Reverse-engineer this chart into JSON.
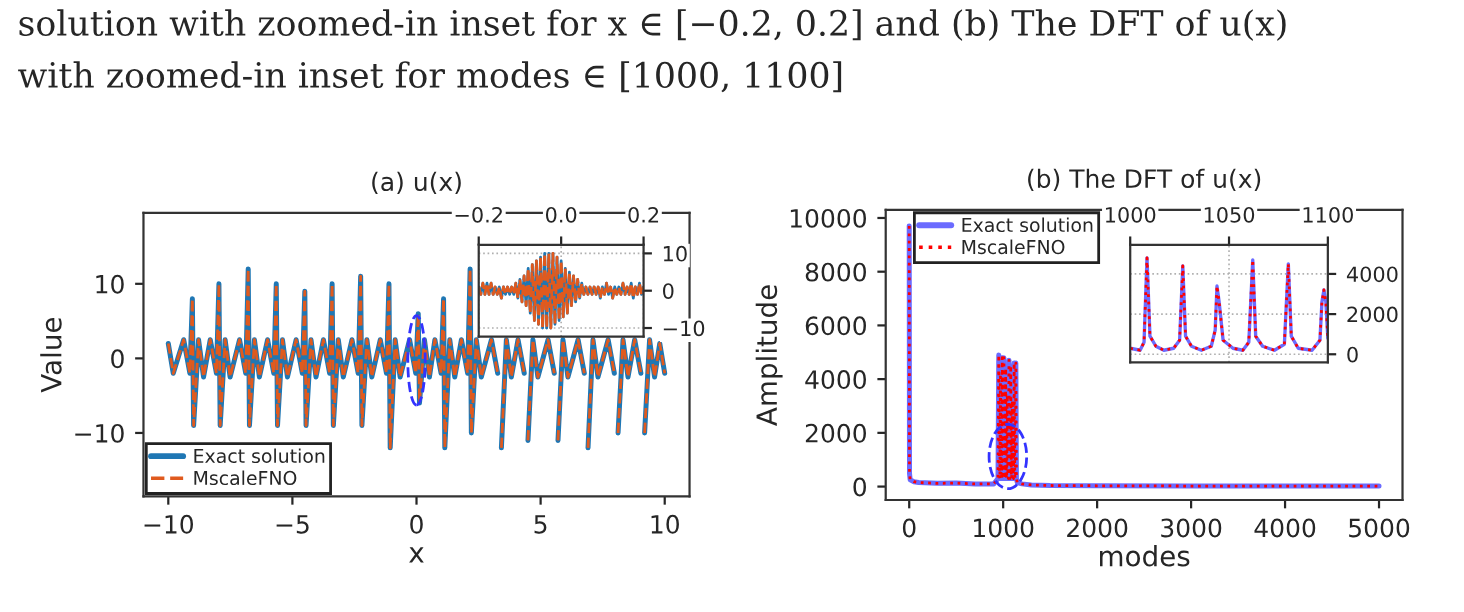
{
  "chart_data": [
    {
      "type": "line",
      "title": "(a) u(x)",
      "xlabel": "x",
      "ylabel": "Value",
      "xlim": [
        -11,
        11
      ],
      "ylim": [
        -18.5,
        19.5
      ],
      "xticks": [
        {
          "value": -10,
          "label": "−10"
        },
        {
          "value": -5,
          "label": "−5"
        },
        0,
        5,
        10
      ],
      "yticks": [
        {
          "value": -10,
          "label": "−10"
        },
        0,
        10
      ],
      "legend": "bottom left",
      "grid": false,
      "annotations": [
        "solution with zoomed-in inset for x ∈ [−0.2, 0.2] and (b) The DFT of u(x)",
        "with zoomed-in inset for modes ∈ [1000, 1100]"
      ],
      "x": [
        -10,
        -9.8,
        -9.38,
        -9.13,
        -9.03,
        -8.98,
        -8.78,
        -8.58,
        -8.31,
        -8.06,
        -7.96,
        -7.91,
        -7.71,
        -7.51,
        -7.13,
        -6.88,
        -6.78,
        -6.73,
        -6.53,
        -6.33,
        -6.0,
        -5.75,
        -5.65,
        -5.6,
        -5.4,
        -5.2,
        -4.85,
        -4.6,
        -4.5,
        -4.45,
        -4.25,
        -4.05,
        -3.75,
        -3.5,
        -3.4,
        -3.35,
        -3.15,
        -2.95,
        -2.6,
        -2.35,
        -2.25,
        -2.2,
        -2.0,
        -1.8,
        -1.46,
        -1.21,
        -1.11,
        -1.06,
        -0.86,
        -0.66,
        -0.28,
        -0.03,
        0.07,
        0.12,
        0.32,
        0.52,
        0.74,
        0.99,
        1.09,
        1.14,
        1.34,
        1.54,
        1.81,
        2.06,
        2.16,
        2.21,
        2.41,
        2.61,
        3.02,
        3.27,
        3.37,
        3.42,
        3.62,
        3.82,
        4.09,
        4.34,
        4.44,
        4.49,
        4.69,
        4.89,
        5.3,
        5.55,
        5.65,
        5.7,
        5.9,
        6.1,
        6.51,
        6.76,
        6.86,
        6.91,
        7.11,
        7.31,
        7.72,
        7.97,
        8.07,
        8.12,
        8.32,
        8.52,
        8.79,
        9.04,
        9.14,
        9.19,
        9.39,
        9.59,
        9.8,
        10
      ],
      "series": [
        {
          "name": "Exact solution",
          "color": "#1f77b4",
          "line_style": "solid",
          "values": [
            2,
            -2,
            2.5,
            -2,
            8,
            -9,
            2.5,
            -2.5,
            2.5,
            -2,
            10,
            -9,
            2.5,
            -2.5,
            2.5,
            -2,
            12,
            -9,
            2.5,
            -2.5,
            2.5,
            -2,
            10,
            -9,
            2.5,
            -2.5,
            2.5,
            -2,
            9,
            -9,
            2.5,
            -2.5,
            2.5,
            -2,
            10,
            -9,
            2.5,
            -2.5,
            2.5,
            -2,
            11,
            -9,
            2.5,
            -2.5,
            2.5,
            -2,
            10,
            -12,
            2.5,
            -2.5,
            2.5,
            -2,
            6,
            -6,
            2.5,
            -2.5,
            2.5,
            -2,
            8,
            -12,
            2.5,
            -2.5,
            2.5,
            -2,
            12,
            -10,
            2.5,
            -2.5,
            2.5,
            -2,
            null,
            -12,
            2.5,
            -2.5,
            2.5,
            -2,
            null,
            -11,
            2.5,
            -2.5,
            2.5,
            -2,
            null,
            -11,
            2.5,
            -2.5,
            2.5,
            -2,
            null,
            -12,
            2.5,
            -2.5,
            2.5,
            -2,
            null,
            -10,
            2.5,
            -2.5,
            2.5,
            -2,
            null,
            -10,
            2.5,
            -2.5,
            2,
            -2
          ]
        },
        {
          "name": "MscaleFNO",
          "color": "#e05a1e",
          "line_style": "dashed",
          "values": [
            2,
            -2,
            2.5,
            -2,
            8,
            -9,
            2.5,
            -2.5,
            2.5,
            -2,
            10,
            -9,
            2.5,
            -2.5,
            2.5,
            -2,
            12,
            -9,
            2.5,
            -2.5,
            2.5,
            -2,
            10,
            -9,
            2.5,
            -2.5,
            2.5,
            -2,
            9,
            -9,
            2.5,
            -2.5,
            2.5,
            -2,
            10,
            -9,
            2.5,
            -2.5,
            2.5,
            -2,
            11,
            -9,
            2.5,
            -2.5,
            2.5,
            -2,
            10,
            -12,
            2.5,
            -2.5,
            2.5,
            -2,
            6,
            -6,
            2.5,
            -2.5,
            2.5,
            -2,
            8,
            -12,
            2.5,
            -2.5,
            2.5,
            -2,
            12,
            -10,
            2.5,
            -2.5,
            2.5,
            -2,
            null,
            -12,
            2.5,
            -2.5,
            2.5,
            -2,
            null,
            -11,
            2.5,
            -2.5,
            2.5,
            -2,
            null,
            -11,
            2.5,
            -2.5,
            2.5,
            -2,
            null,
            -12,
            2.5,
            -2.5,
            2.5,
            -2,
            null,
            -10,
            2.5,
            -2.5,
            2.5,
            -2,
            null,
            -10,
            2.5,
            -2.5,
            2,
            -2
          ]
        }
      ]
    },
    {
      "type": "line",
      "xlim": [
        -0.2,
        0.2
      ],
      "ylim": [
        -12.3,
        12.3
      ],
      "xticks": [
        {
          "value": -0.2,
          "label": "−0.2"
        },
        {
          "value": 0,
          "label": "0.0"
        },
        {
          "value": 0.2,
          "label": "0.2"
        }
      ],
      "yticks": [
        {
          "value": -10,
          "label": "−10"
        },
        0,
        10
      ],
      "grid": true,
      "legend": false,
      "x": [
        -0.2,
        -0.195,
        -0.19,
        -0.185,
        -0.18,
        -0.175,
        -0.17,
        -0.165,
        -0.16,
        -0.155,
        -0.15,
        -0.145,
        -0.14,
        -0.135,
        -0.13,
        -0.125,
        -0.12,
        -0.115,
        -0.11,
        -0.105,
        -0.1,
        -0.095,
        -0.09,
        -0.085,
        -0.08,
        -0.075,
        -0.07,
        -0.065,
        -0.06,
        -0.055,
        -0.05,
        -0.045,
        -0.04,
        -0.035,
        -0.03,
        -0.025,
        -0.02,
        -0.015,
        -0.01,
        -0.005,
        0,
        0.005,
        0.01,
        0.015,
        0.02,
        0.025,
        0.03,
        0.035,
        0.04,
        0.045,
        0.05,
        0.055,
        0.06,
        0.065,
        0.07,
        0.075,
        0.08,
        0.085,
        0.09,
        0.095,
        0.1,
        0.105,
        0.11,
        0.115,
        0.12,
        0.125,
        0.13,
        0.135,
        0.14,
        0.145,
        0.15,
        0.155,
        0.16,
        0.165,
        0.17,
        0.175,
        0.18,
        0.185,
        0.19,
        0.195,
        0.2
      ],
      "series": [
        {
          "color": "#1f77b4",
          "line_style": "solid",
          "values": [
            1,
            -1,
            2,
            -1,
            2,
            -1,
            2,
            -1,
            1,
            -1,
            1,
            -2,
            1,
            -1,
            1,
            -1,
            1,
            -1,
            2,
            -2,
            3,
            -3,
            4,
            -4,
            6,
            -6,
            7,
            -8,
            8,
            -9,
            9,
            -10,
            10,
            -10,
            10,
            -10,
            10,
            -9,
            9,
            -8,
            8,
            -7,
            6,
            -6,
            5,
            -4,
            4,
            -3,
            3,
            -2,
            2,
            -1,
            1,
            -1,
            1,
            -1,
            1,
            -1,
            1,
            -2,
            1,
            -1,
            2,
            -1,
            1,
            -2,
            1,
            -1,
            1,
            -1,
            2,
            -1,
            1,
            -1,
            2,
            -2,
            1,
            -1,
            2,
            -1,
            1
          ]
        },
        {
          "color": "#e05a1e",
          "line_style": "dashed",
          "values": [
            1,
            -1,
            2,
            -1,
            2,
            -1,
            2,
            -1,
            1,
            -1,
            1,
            -2,
            1,
            -1,
            1,
            -1,
            1,
            -1,
            2,
            -2,
            3,
            -3,
            4,
            -4,
            6,
            -6,
            7,
            -8,
            8,
            -9,
            9,
            -10,
            10,
            -10,
            10,
            -10,
            10,
            -9,
            9,
            -8,
            8,
            -7,
            6,
            -6,
            5,
            -4,
            4,
            -3,
            3,
            -2,
            2,
            -1,
            1,
            -1,
            1,
            -1,
            1,
            -1,
            1,
            -2,
            1,
            -1,
            2,
            -1,
            1,
            -2,
            1,
            -1,
            1,
            -1,
            2,
            -1,
            1,
            -1,
            2,
            -2,
            1,
            -1,
            2,
            -1,
            1
          ]
        }
      ]
    },
    {
      "type": "line",
      "title": "(b) The DFT of u(x)",
      "xlabel": "modes",
      "ylabel": "Amplitude",
      "xlim": [
        -250,
        5250
      ],
      "ylim": [
        -500,
        10300
      ],
      "xticks": [
        0,
        1000,
        2000,
        3000,
        4000,
        5000
      ],
      "yticks": [
        0,
        2000,
        4000,
        6000,
        8000,
        10000
      ],
      "legend": "top left",
      "grid": false,
      "x": [
        0,
        3,
        10,
        50,
        100,
        300,
        500,
        700,
        900,
        945,
        953,
        960,
        965,
        971,
        978,
        983,
        990,
        996,
        1001,
        1008,
        1014,
        1020,
        1027,
        1033,
        1038,
        1044,
        1050,
        1055,
        1062,
        1068,
        1073,
        1080,
        1086,
        1091,
        1098,
        1104,
        1110,
        1117,
        1123,
        1129,
        1135,
        1141,
        1150,
        1200,
        1300,
        1500,
        2000,
        3000,
        4000,
        5000
      ],
      "series": [
        {
          "name": "Exact solution",
          "color": "#6b6bff",
          "line_style": "solid",
          "values": [
            9700,
            500,
            250,
            180,
            150,
            120,
            130,
            100,
            100,
            300,
            4900,
            400,
            300,
            4200,
            400,
            300,
            4800,
            400,
            300,
            4800,
            400,
            300,
            4400,
            400,
            300,
            3400,
            400,
            300,
            4700,
            400,
            300,
            4500,
            400,
            300,
            3200,
            400,
            300,
            4600,
            400,
            300,
            4600,
            300,
            150,
            100,
            60,
            40,
            30,
            20,
            20,
            20
          ]
        },
        {
          "name": "MscaleFNO",
          "color": "#ff0000",
          "line_style": "dotted",
          "values": [
            9700,
            500,
            250,
            180,
            150,
            120,
            130,
            100,
            100,
            300,
            4900,
            400,
            300,
            4200,
            400,
            300,
            4800,
            400,
            300,
            4800,
            400,
            300,
            4400,
            400,
            300,
            3400,
            400,
            300,
            4700,
            400,
            300,
            4500,
            400,
            300,
            3200,
            400,
            300,
            4600,
            400,
            300,
            4600,
            300,
            150,
            100,
            60,
            40,
            30,
            20,
            20,
            20
          ]
        }
      ]
    },
    {
      "type": "line",
      "xlim": [
        1000,
        1100
      ],
      "ylim": [
        -400,
        5450
      ],
      "xticks": [
        1000,
        1050,
        1100
      ],
      "yticks": [
        0,
        2000,
        4000
      ],
      "grid": true,
      "legend": false,
      "x": [
        1000,
        1005,
        1007,
        1008.5,
        1010,
        1013,
        1017,
        1022,
        1025,
        1026.6,
        1028,
        1031,
        1036,
        1041,
        1043,
        1043.9,
        1045,
        1047,
        1052,
        1057,
        1060,
        1062,
        1063.5,
        1067,
        1073,
        1078,
        1080,
        1081.5,
        1085,
        1092,
        1096,
        1097,
        1098,
        1099,
        1100
      ],
      "series": [
        {
          "color": "#6b6bff",
          "line_style": "solid",
          "values": [
            300,
            200,
            600,
            4800,
            900,
            400,
            200,
            300,
            700,
            4400,
            900,
            400,
            200,
            400,
            1200,
            3400,
            2600,
            700,
            300,
            200,
            600,
            4700,
            900,
            400,
            200,
            500,
            4500,
            900,
            300,
            200,
            700,
            2600,
            3200,
            2600,
            800
          ]
        },
        {
          "color": "#ff0000",
          "line_style": "dotted",
          "values": [
            300,
            200,
            600,
            4800,
            900,
            400,
            200,
            300,
            700,
            4400,
            900,
            400,
            200,
            400,
            1200,
            3400,
            2600,
            700,
            300,
            200,
            600,
            4700,
            900,
            400,
            200,
            500,
            4500,
            900,
            300,
            200,
            700,
            2600,
            3200,
            2600,
            800
          ]
        }
      ]
    }
  ]
}
